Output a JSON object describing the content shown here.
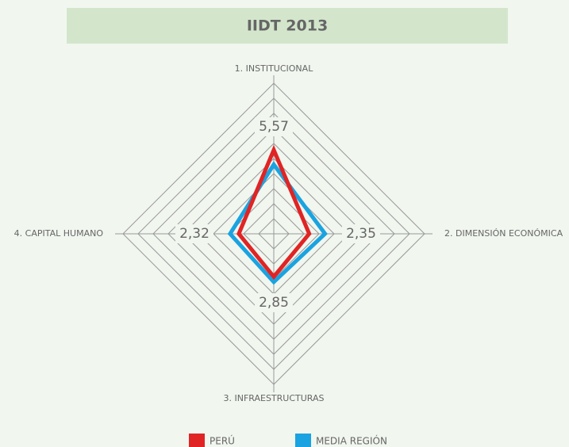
{
  "chart_data": {
    "type": "radar",
    "title": "IIDT 2013",
    "categories": [
      "1. INSTITUCIONAL",
      "2. DIMENSIÓN ECONÓMICA",
      "3. INFRAESTRUCTURAS",
      "4. CAPITAL HUMANO"
    ],
    "series": [
      {
        "name": "PERÚ",
        "color": "#e02424",
        "values": [
          5.57,
          2.35,
          2.85,
          2.32
        ],
        "value_labels": [
          "5,57",
          "2,35",
          "2,85",
          "2,32"
        ]
      },
      {
        "name": "MEDIA REGIÓN",
        "color": "#1aa3e0",
        "values": [
          4.6,
          3.4,
          3.2,
          2.9
        ]
      }
    ],
    "rlim": [
      0,
      10
    ],
    "rticks": [
      1,
      2,
      3,
      4,
      5,
      6,
      7,
      8,
      9,
      10
    ],
    "grid": true
  }
}
